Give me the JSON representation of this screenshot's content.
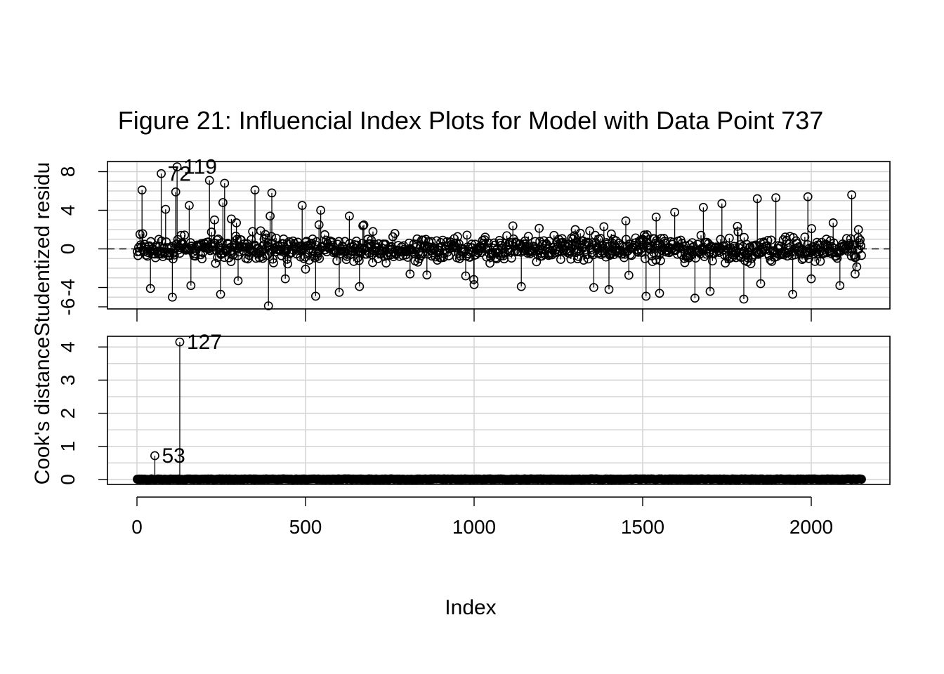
{
  "title": "Figure 21: Influencial Index Plots for Model with Data Point 737",
  "xlabel": "Index",
  "chart_data": [
    {
      "type": "scatter",
      "style": "index-plot with vertical spikes to zero, open circles",
      "ylabel": "Studentized residuals",
      "ylabel_visible": "Studentized residu",
      "xlim": [
        0,
        2150
      ],
      "ylim": [
        -6,
        9
      ],
      "yticks": [
        "-6",
        "-4",
        "0",
        "4",
        "8"
      ],
      "ytick_values": [
        -6,
        -4,
        0,
        4,
        8
      ],
      "reference_line": 0,
      "grid": true,
      "n_points": 2150,
      "labeled_points": [
        {
          "label": "72",
          "x": 72,
          "y": 7.8
        },
        {
          "label": "119",
          "x": 119,
          "y": 8.5
        }
      ],
      "notable_points": [
        {
          "x": 15,
          "y": 6.1
        },
        {
          "x": 40,
          "y": -4.1
        },
        {
          "x": 72,
          "y": 7.8
        },
        {
          "x": 85,
          "y": 4.1
        },
        {
          "x": 105,
          "y": -5.0
        },
        {
          "x": 115,
          "y": 5.9
        },
        {
          "x": 119,
          "y": 8.5
        },
        {
          "x": 155,
          "y": 4.5
        },
        {
          "x": 160,
          "y": -3.8
        },
        {
          "x": 215,
          "y": 7.1
        },
        {
          "x": 230,
          "y": 3.0
        },
        {
          "x": 248,
          "y": -4.7
        },
        {
          "x": 255,
          "y": 4.8
        },
        {
          "x": 260,
          "y": 6.8
        },
        {
          "x": 280,
          "y": 3.1
        },
        {
          "x": 295,
          "y": 2.7
        },
        {
          "x": 300,
          "y": -3.3
        },
        {
          "x": 350,
          "y": 6.1
        },
        {
          "x": 390,
          "y": -5.9
        },
        {
          "x": 395,
          "y": 3.4
        },
        {
          "x": 400,
          "y": 5.8
        },
        {
          "x": 440,
          "y": -3.1
        },
        {
          "x": 490,
          "y": 4.5
        },
        {
          "x": 500,
          "y": -2.1
        },
        {
          "x": 530,
          "y": -4.9
        },
        {
          "x": 540,
          "y": 2.5
        },
        {
          "x": 545,
          "y": 4.0
        },
        {
          "x": 600,
          "y": -4.5
        },
        {
          "x": 630,
          "y": 3.4
        },
        {
          "x": 660,
          "y": -3.9
        },
        {
          "x": 670,
          "y": 2.4
        },
        {
          "x": 700,
          "y": 1.8
        },
        {
          "x": 765,
          "y": 1.6
        },
        {
          "x": 810,
          "y": -2.6
        },
        {
          "x": 860,
          "y": -2.7
        },
        {
          "x": 975,
          "y": -2.8
        },
        {
          "x": 1000,
          "y": -3.7
        },
        {
          "x": 1140,
          "y": -3.9
        },
        {
          "x": 1300,
          "y": 2.0
        },
        {
          "x": 1355,
          "y": -4.0
        },
        {
          "x": 1385,
          "y": 2.3
        },
        {
          "x": 1400,
          "y": -4.2
        },
        {
          "x": 1450,
          "y": 2.9
        },
        {
          "x": 1510,
          "y": -4.9
        },
        {
          "x": 1540,
          "y": 3.3
        },
        {
          "x": 1550,
          "y": -4.6
        },
        {
          "x": 1595,
          "y": 3.8
        },
        {
          "x": 1655,
          "y": -5.1
        },
        {
          "x": 1680,
          "y": 4.3
        },
        {
          "x": 1700,
          "y": -4.4
        },
        {
          "x": 1735,
          "y": 4.7
        },
        {
          "x": 1800,
          "y": -5.2
        },
        {
          "x": 1840,
          "y": 5.2
        },
        {
          "x": 1850,
          "y": -3.6
        },
        {
          "x": 1895,
          "y": 5.3
        },
        {
          "x": 1945,
          "y": -4.7
        },
        {
          "x": 1990,
          "y": 5.4
        },
        {
          "x": 2000,
          "y": -3.1
        },
        {
          "x": 2065,
          "y": 2.7
        },
        {
          "x": 2085,
          "y": -3.8
        },
        {
          "x": 2120,
          "y": 5.6
        },
        {
          "x": 2130,
          "y": -2.6
        },
        {
          "x": 2140,
          "y": 2.0
        }
      ]
    },
    {
      "type": "scatter",
      "style": "index-plot with vertical spikes to zero, open circles",
      "ylabel": "Cook's distance",
      "xlim": [
        0,
        2150
      ],
      "ylim": [
        0,
        4.2
      ],
      "yticks": [
        "0",
        "1",
        "2",
        "3",
        "4"
      ],
      "ytick_values": [
        0,
        1,
        2,
        3,
        4
      ],
      "xticks": [
        "0",
        "500",
        "1000",
        "1500",
        "2000"
      ],
      "xtick_values": [
        0,
        500,
        1000,
        1500,
        2000
      ],
      "grid": true,
      "n_points": 2150,
      "labeled_points": [
        {
          "label": "53",
          "x": 53,
          "y": 0.72
        },
        {
          "label": "127",
          "x": 127,
          "y": 4.15
        }
      ],
      "baseline_value": 0.0
    }
  ]
}
